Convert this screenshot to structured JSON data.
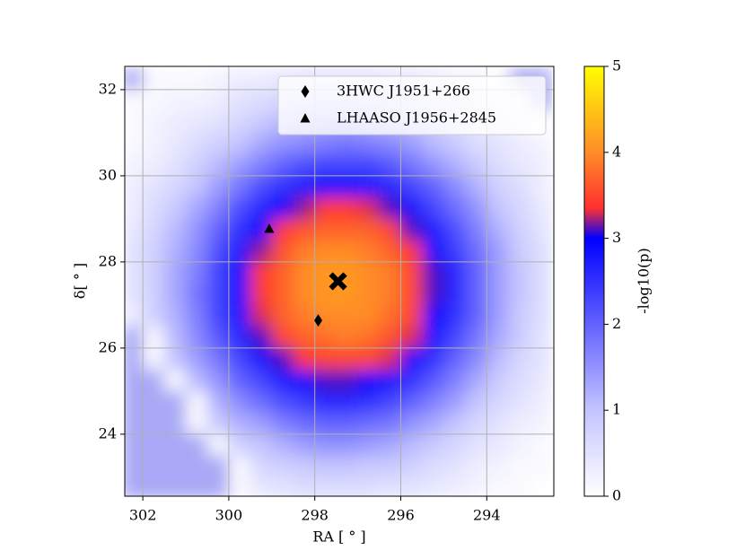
{
  "chart_data": {
    "type": "heatmap",
    "xlabel": "RA [ ° ]",
    "ylabel": "δ[ ° ]",
    "colorbar_label": "-log10(p)",
    "xlim": [
      302.42,
      292.44
    ],
    "ylim": [
      22.56,
      32.54
    ],
    "xticks": [
      302,
      300,
      298,
      296,
      294
    ],
    "yticks": [
      24,
      26,
      28,
      30,
      32
    ],
    "zlim": [
      0,
      5
    ],
    "zticks": [
      0,
      1,
      2,
      3,
      4,
      5
    ],
    "grid": true,
    "legend": "upper right",
    "mask_color": "#a8a8f6",
    "colormap": [
      {
        "value": 0,
        "color": "#ffffff"
      },
      {
        "value": 1,
        "color": "#c4c4ff"
      },
      {
        "value": 2,
        "color": "#6262ff"
      },
      {
        "value": 3,
        "color": "#0000ff"
      },
      {
        "value": 3.35,
        "color": "#ff3030"
      },
      {
        "value": 4,
        "color": "#ff8c28"
      },
      {
        "value": 5,
        "color": "#ffff00"
      }
    ],
    "x": [
      302.25,
      301.75,
      301.25,
      300.75,
      300.25,
      299.75,
      299.25,
      298.75,
      298.25,
      297.75,
      297.25,
      296.75,
      296.25,
      295.75,
      295.25,
      294.75,
      294.25,
      293.75,
      293.25,
      292.75
    ],
    "y": [
      32.25,
      31.75,
      31.25,
      30.75,
      30.25,
      29.75,
      29.25,
      28.75,
      28.25,
      27.75,
      27.25,
      26.75,
      26.25,
      25.75,
      25.25,
      24.75,
      24.25,
      23.75,
      23.25,
      22.75
    ],
    "z": [
      [
        null,
        0.1,
        0.1,
        0.1,
        0.2,
        0.3,
        0.3,
        0.4,
        0.5,
        0.5,
        0.5,
        0.5,
        0.4,
        0.4,
        0.3,
        0.2,
        0.2,
        0.0,
        null,
        null
      ],
      [
        0.1,
        0.1,
        0.2,
        0.2,
        0.3,
        0.5,
        0.6,
        0.7,
        0.8,
        0.8,
        0.8,
        0.8,
        0.7,
        0.6,
        0.5,
        0.4,
        0.3,
        0.2,
        0.0,
        null
      ],
      [
        0.1,
        0.2,
        0.3,
        0.4,
        0.5,
        0.7,
        0.9,
        1.1,
        1.2,
        1.3,
        1.3,
        1.2,
        1.1,
        1.0,
        0.8,
        0.6,
        0.4,
        0.3,
        0.2,
        0.0
      ],
      [
        0.1,
        0.2,
        0.4,
        0.6,
        0.8,
        1.0,
        1.3,
        1.5,
        1.6,
        1.7,
        1.8,
        1.7,
        1.6,
        1.4,
        1.1,
        0.9,
        0.6,
        0.5,
        0.3,
        0.2
      ],
      [
        0.2,
        0.3,
        0.5,
        0.8,
        1.1,
        1.4,
        1.7,
        2.0,
        2.2,
        2.3,
        2.3,
        2.3,
        2.1,
        1.8,
        1.5,
        1.2,
        0.9,
        0.6,
        0.4,
        0.3
      ],
      [
        0.3,
        0.5,
        0.7,
        1.0,
        1.4,
        1.8,
        2.2,
        2.5,
        2.7,
        2.9,
        2.9,
        2.8,
        2.6,
        2.3,
        2.0,
        1.6,
        1.2,
        0.8,
        0.6,
        0.3
      ],
      [
        0.3,
        0.6,
        0.9,
        1.3,
        1.7,
        2.2,
        2.6,
        3.0,
        3.2,
        3.4,
        3.4,
        3.3,
        3.1,
        2.8,
        2.3,
        1.9,
        1.5,
        1.0,
        0.7,
        0.4
      ],
      [
        0.4,
        0.7,
        1.1,
        1.5,
        2.0,
        2.5,
        3.0,
        3.4,
        3.6,
        3.7,
        3.7,
        3.7,
        3.5,
        3.1,
        2.7,
        2.2,
        1.7,
        1.2,
        0.8,
        0.5
      ],
      [
        0.5,
        0.8,
        1.2,
        1.6,
        2.2,
        2.7,
        3.2,
        3.6,
        3.9,
        4.0,
        4.0,
        3.9,
        3.7,
        3.4,
        2.9,
        2.4,
        1.9,
        1.4,
        0.9,
        0.6
      ],
      [
        0.5,
        0.8,
        1.3,
        1.7,
        2.3,
        2.9,
        3.4,
        3.7,
        4.0,
        4.1,
        4.1,
        4.0,
        3.9,
        3.5,
        3.1,
        2.6,
        2.0,
        1.4,
        1.0,
        0.6
      ],
      [
        0.5,
        0.8,
        1.3,
        1.8,
        2.3,
        2.9,
        3.4,
        3.7,
        4.0,
        4.1,
        4.1,
        4.0,
        3.9,
        3.5,
        3.1,
        2.6,
        2.0,
        1.4,
        1.0,
        0.6
      ],
      [
        0.3,
        0.8,
        1.2,
        1.7,
        2.3,
        2.8,
        3.3,
        3.7,
        3.9,
        4.0,
        4.0,
        4.0,
        3.8,
        3.5,
        3.0,
        2.5,
        2.0,
        1.4,
        0.9,
        0.6
      ],
      [
        null,
        0.1,
        1.1,
        1.6,
        2.1,
        2.6,
        3.1,
        3.5,
        3.7,
        3.8,
        3.9,
        3.8,
        3.6,
        3.3,
        2.8,
        2.3,
        1.8,
        1.3,
        0.9,
        0.5
      ],
      [
        null,
        0.1,
        1.0,
        1.4,
        1.8,
        2.3,
        2.8,
        3.1,
        3.4,
        3.5,
        3.5,
        3.5,
        3.3,
        2.9,
        2.5,
        2.0,
        1.6,
        1.1,
        0.7,
        0.5
      ],
      [
        null,
        null,
        0.1,
        1.1,
        1.5,
        2.0,
        2.3,
        2.7,
        2.9,
        3.1,
        3.1,
        3.0,
        2.8,
        2.5,
        2.1,
        1.7,
        1.3,
        0.9,
        0.6,
        0.4
      ],
      [
        null,
        null,
        null,
        0.1,
        1.2,
        1.6,
        1.9,
        2.2,
        2.4,
        2.6,
        2.6,
        2.5,
        2.3,
        2.0,
        1.7,
        1.4,
        1.0,
        0.7,
        0.5,
        0.3
      ],
      [
        null,
        null,
        null,
        0.1,
        0.9,
        1.2,
        1.4,
        1.7,
        1.9,
        2.0,
        2.0,
        1.9,
        1.8,
        1.5,
        1.3,
        1.0,
        0.7,
        0.5,
        0.3,
        0.2
      ],
      [
        null,
        null,
        null,
        null,
        0.1,
        0.8,
        1.0,
        1.2,
        1.4,
        1.5,
        1.5,
        1.4,
        1.3,
        1.1,
        0.9,
        0.7,
        0.5,
        0.4,
        0.2,
        0.1
      ],
      [
        null,
        null,
        null,
        null,
        null,
        0.1,
        0.7,
        0.8,
        0.9,
        1.0,
        1.0,
        0.9,
        0.9,
        0.8,
        0.6,
        0.5,
        0.3,
        0.2,
        0.1,
        0.1
      ],
      [
        null,
        null,
        null,
        null,
        null,
        0.1,
        0.4,
        0.5,
        0.6,
        0.6,
        0.6,
        0.6,
        0.5,
        0.5,
        0.4,
        0.3,
        0.2,
        0.1,
        0.1,
        0.0
      ]
    ],
    "series": [
      {
        "name": "3HWC J1951+266",
        "marker": "diamond",
        "color": "#000000",
        "x": [
          297.92
        ],
        "values": [
          26.64
        ]
      },
      {
        "name": "LHAASO J1956+2845",
        "marker": "triangle",
        "color": "#000000",
        "x": [
          299.06
        ],
        "values": [
          28.77
        ]
      }
    ],
    "best_fit": {
      "marker": "x",
      "color": "#000000",
      "x": [
        297.46
      ],
      "values": [
        27.55
      ]
    }
  }
}
